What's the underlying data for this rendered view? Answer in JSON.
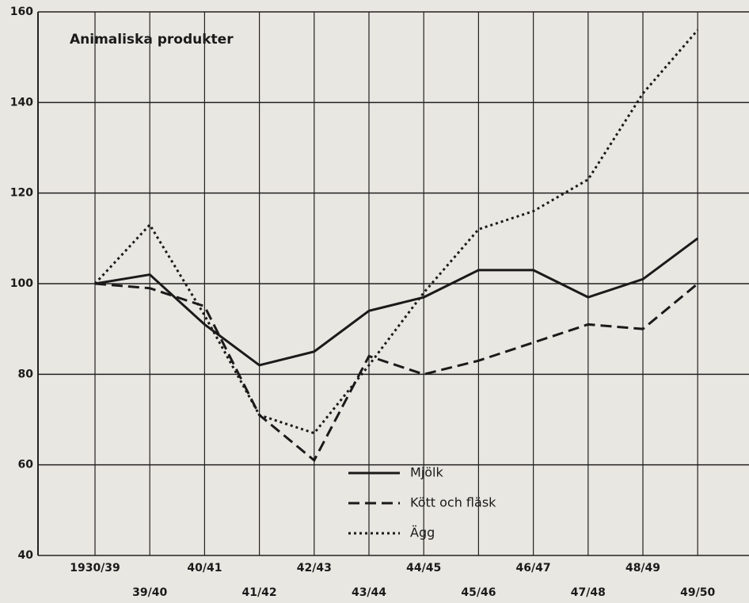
{
  "chart_data": {
    "type": "line",
    "title": "Animaliska produkter",
    "categories": [
      "1930/39",
      "39/40",
      "40/41",
      "41/42",
      "42/43",
      "43/44",
      "44/45",
      "45/46",
      "46/47",
      "47/48",
      "48/49",
      "49/50"
    ],
    "series": [
      {
        "name": "Mjölk",
        "color": "#1a1a1a",
        "style": "solid",
        "values": [
          100,
          102,
          91,
          82,
          85,
          94,
          97,
          103,
          103,
          97,
          101,
          110
        ]
      },
      {
        "name": "Kött och fläsk",
        "color": "#1a1a1a",
        "style": "dashed",
        "values": [
          100,
          99,
          95,
          71,
          61,
          84,
          80,
          83,
          87,
          91,
          90,
          100
        ]
      },
      {
        "name": "Ägg",
        "color": "#1a1a1a",
        "style": "dotted",
        "values": [
          100,
          113,
          93,
          71,
          67,
          82,
          98,
          112,
          116,
          123,
          142,
          156
        ]
      }
    ],
    "ylim": [
      40,
      160
    ],
    "yticks": [
      40,
      60,
      80,
      100,
      120,
      140,
      160
    ],
    "grid": true
  }
}
